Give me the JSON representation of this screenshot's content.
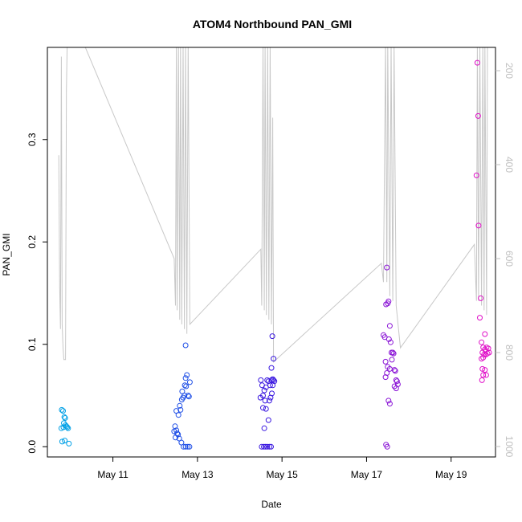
{
  "chart_data": {
    "type": "scatter",
    "title": "ATOM4 Northbound PAN_GMI",
    "xlabel": "Date",
    "ylabel": "PAN_GMI",
    "x_ticks": [
      "May 11",
      "May 13",
      "May 15",
      "May 17",
      "May 19"
    ],
    "x_tick_days": [
      11,
      13,
      15,
      17,
      19
    ],
    "xlim": [
      9.45,
      20.05
    ],
    "ylim": [
      -0.01,
      0.39
    ],
    "y_ticks": [
      0.0,
      0.1,
      0.2,
      0.3
    ],
    "y_tick_labels": [
      "0.0",
      "0.1",
      "0.2",
      "0.3"
    ],
    "y2_ticks": [
      200,
      400,
      600,
      800,
      1000
    ],
    "y2_tick_labels": [
      "200",
      "400",
      "600",
      "800",
      "1000"
    ],
    "y2_reversed": true,
    "y2_color": "#bfbfbf",
    "grid": false,
    "series": [
      {
        "color": "#00a0e6",
        "points": [
          [
            9.79,
            0.036
          ],
          [
            9.82,
            0.035
          ],
          [
            9.85,
            0.029
          ],
          [
            9.87,
            0.028
          ],
          [
            9.84,
            0.023
          ],
          [
            9.88,
            0.021
          ],
          [
            9.9,
            0.02
          ],
          [
            9.92,
            0.019
          ],
          [
            9.78,
            0.018
          ],
          [
            9.83,
            0.019
          ],
          [
            9.94,
            0.018
          ],
          [
            9.8,
            0.005
          ],
          [
            9.86,
            0.006
          ],
          [
            9.96,
            0.003
          ]
        ]
      },
      {
        "color": "#1f4fe6",
        "points": [
          [
            12.47,
            0.02
          ],
          [
            12.5,
            0.016
          ],
          [
            12.45,
            0.015
          ],
          [
            12.52,
            0.013
          ],
          [
            12.54,
            0.012
          ],
          [
            12.48,
            0.009
          ],
          [
            12.57,
            0.008
          ],
          [
            12.62,
            0.004
          ],
          [
            12.55,
            0.031
          ],
          [
            12.58,
            0.04
          ],
          [
            12.6,
            0.036
          ],
          [
            12.5,
            0.035
          ],
          [
            12.63,
            0.046
          ],
          [
            12.66,
            0.048
          ],
          [
            12.69,
            0.05
          ],
          [
            12.64,
            0.054
          ],
          [
            12.7,
            0.06
          ],
          [
            12.73,
            0.059
          ],
          [
            12.72,
            0.067
          ],
          [
            12.75,
            0.07
          ],
          [
            12.78,
            0.05
          ],
          [
            12.8,
            0.049
          ],
          [
            12.82,
            0.063
          ],
          [
            12.72,
            0.099
          ],
          [
            12.67,
            0.0
          ],
          [
            12.72,
            0.0
          ],
          [
            12.77,
            0.0
          ],
          [
            12.81,
            0.0
          ]
        ]
      },
      {
        "color": "#3a18e0",
        "points": [
          [
            14.5,
            0.065
          ],
          [
            14.53,
            0.06
          ],
          [
            14.49,
            0.048
          ],
          [
            14.55,
            0.05
          ],
          [
            14.6,
            0.045
          ],
          [
            14.58,
            0.055
          ],
          [
            14.62,
            0.058
          ],
          [
            14.65,
            0.065
          ],
          [
            14.68,
            0.064
          ],
          [
            14.72,
            0.06
          ],
          [
            14.75,
            0.065
          ],
          [
            14.78,
            0.066
          ],
          [
            14.8,
            0.065
          ],
          [
            14.82,
            0.064
          ],
          [
            14.55,
            0.038
          ],
          [
            14.62,
            0.037
          ],
          [
            14.58,
            0.018
          ],
          [
            14.68,
            0.026
          ],
          [
            14.7,
            0.045
          ],
          [
            14.73,
            0.048
          ],
          [
            14.76,
            0.052
          ],
          [
            14.78,
            0.06
          ],
          [
            14.8,
            0.086
          ],
          [
            14.75,
            0.077
          ],
          [
            14.77,
            0.108
          ],
          [
            14.52,
            0.0
          ],
          [
            14.57,
            0.0
          ],
          [
            14.61,
            0.0
          ],
          [
            14.65,
            0.0
          ],
          [
            14.7,
            0.0
          ],
          [
            14.74,
            0.0
          ]
        ]
      },
      {
        "color": "#8a14d6",
        "points": [
          [
            17.4,
            0.109
          ],
          [
            17.43,
            0.107
          ],
          [
            17.5,
            0.14
          ],
          [
            17.46,
            0.139
          ],
          [
            17.52,
            0.142
          ],
          [
            17.48,
            0.175
          ],
          [
            17.55,
            0.118
          ],
          [
            17.53,
            0.105
          ],
          [
            17.57,
            0.102
          ],
          [
            17.59,
            0.092
          ],
          [
            17.62,
            0.092
          ],
          [
            17.64,
            0.091
          ],
          [
            17.45,
            0.083
          ],
          [
            17.5,
            0.078
          ],
          [
            17.55,
            0.076
          ],
          [
            17.6,
            0.085
          ],
          [
            17.66,
            0.075
          ],
          [
            17.68,
            0.074
          ],
          [
            17.7,
            0.065
          ],
          [
            17.72,
            0.064
          ],
          [
            17.74,
            0.061
          ],
          [
            17.66,
            0.059
          ],
          [
            17.7,
            0.057
          ],
          [
            17.45,
            0.068
          ],
          [
            17.48,
            0.072
          ],
          [
            17.52,
            0.045
          ],
          [
            17.55,
            0.042
          ],
          [
            17.46,
            0.002
          ],
          [
            17.49,
            0.0
          ]
        ]
      },
      {
        "color": "#e010c8",
        "points": [
          [
            19.62,
            0.375
          ],
          [
            19.64,
            0.323
          ],
          [
            19.6,
            0.265
          ],
          [
            19.65,
            0.216
          ],
          [
            19.7,
            0.145
          ],
          [
            19.68,
            0.126
          ],
          [
            19.72,
            0.102
          ],
          [
            19.76,
            0.097
          ],
          [
            19.8,
            0.095
          ],
          [
            19.84,
            0.097
          ],
          [
            19.88,
            0.096
          ],
          [
            19.74,
            0.092
          ],
          [
            19.78,
            0.09
          ],
          [
            19.82,
            0.09
          ],
          [
            19.86,
            0.091
          ],
          [
            19.9,
            0.092
          ],
          [
            19.72,
            0.086
          ],
          [
            19.76,
            0.087
          ],
          [
            19.8,
            0.11
          ],
          [
            19.74,
            0.076
          ],
          [
            19.8,
            0.075
          ],
          [
            19.76,
            0.07
          ],
          [
            19.83,
            0.07
          ],
          [
            19.73,
            0.065
          ]
        ]
      }
    ],
    "line": {
      "color": "#c8c8c8",
      "axis": "y2",
      "points": [
        [
          9.72,
          380
        ],
        [
          9.74,
          660
        ],
        [
          9.76,
          750
        ],
        [
          9.78,
          170
        ],
        [
          9.8,
          740
        ],
        [
          9.82,
          790
        ],
        [
          9.84,
          815
        ],
        [
          9.86,
          815
        ],
        [
          9.88,
          815
        ],
        [
          9.9,
          240
        ],
        [
          9.92,
          140
        ],
        [
          9.94,
          140
        ],
        [
          10.3,
          140
        ],
        [
          12.45,
          600
        ],
        [
          12.48,
          700
        ],
        [
          12.5,
          140
        ],
        [
          12.52,
          710
        ],
        [
          12.55,
          140
        ],
        [
          12.58,
          730
        ],
        [
          12.6,
          140
        ],
        [
          12.63,
          740
        ],
        [
          12.66,
          140
        ],
        [
          12.69,
          750
        ],
        [
          12.72,
          140
        ],
        [
          12.75,
          760
        ],
        [
          12.78,
          140
        ],
        [
          12.82,
          740
        ],
        [
          14.5,
          580
        ],
        [
          14.52,
          700
        ],
        [
          14.55,
          140
        ],
        [
          14.58,
          710
        ],
        [
          14.6,
          140
        ],
        [
          14.63,
          720
        ],
        [
          14.66,
          140
        ],
        [
          14.69,
          730
        ],
        [
          14.72,
          140
        ],
        [
          14.75,
          740
        ],
        [
          14.78,
          300
        ],
        [
          14.8,
          820
        ],
        [
          17.35,
          610
        ],
        [
          17.4,
          650
        ],
        [
          17.45,
          140
        ],
        [
          17.48,
          650
        ],
        [
          17.5,
          140
        ],
        [
          17.55,
          680
        ],
        [
          17.58,
          140
        ],
        [
          17.62,
          690
        ],
        [
          17.65,
          140
        ],
        [
          17.7,
          700
        ],
        [
          17.8,
          790
        ],
        [
          19.55,
          570
        ],
        [
          19.6,
          690
        ],
        [
          19.62,
          140
        ],
        [
          19.65,
          690
        ],
        [
          19.68,
          140
        ],
        [
          19.72,
          700
        ],
        [
          19.75,
          140
        ],
        [
          19.78,
          710
        ],
        [
          19.8,
          140
        ],
        [
          19.84,
          720
        ],
        [
          19.86,
          140
        ]
      ]
    }
  }
}
